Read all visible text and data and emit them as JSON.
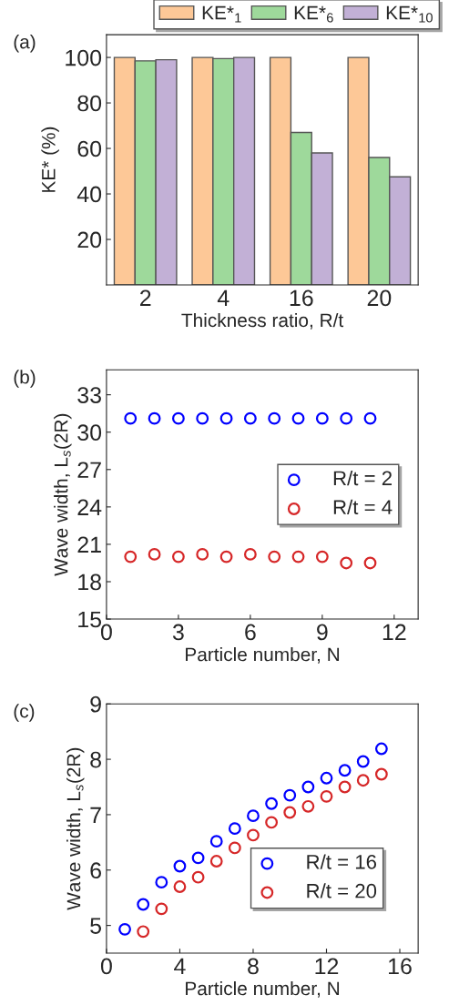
{
  "chart_data": [
    {
      "type": "bar",
      "annotations": [
        "(a)"
      ],
      "xlabel": "Thickness ratio, R/t",
      "ylabel": "KE* (%)",
      "categories": [
        "2",
        "4",
        "16",
        "20"
      ],
      "ylim": [
        0,
        110
      ],
      "yticks": [
        20,
        40,
        60,
        80,
        100
      ],
      "legend": "top",
      "series": [
        {
          "name": "KE*$_{1}$",
          "color": "#fdc897",
          "values": [
            100,
            100,
            100,
            100
          ]
        },
        {
          "name": "KE*$_{6}$",
          "color": "#9ed99b",
          "values": [
            98.5,
            99.5,
            67,
            56
          ]
        },
        {
          "name": "KE*$_{10}$",
          "color": "#c2b0d6",
          "values": [
            99,
            100,
            58,
            47.5
          ]
        }
      ]
    },
    {
      "type": "scatter",
      "annotations": [
        "(b)"
      ],
      "xlabel": "Particle number, N",
      "ylabel": "Wave width, L$_{s}$(2R)",
      "xlim": [
        0,
        13
      ],
      "xticks": [
        0,
        3,
        6,
        9,
        12
      ],
      "ylim": [
        15,
        35
      ],
      "yticks": [
        15,
        18,
        21,
        24,
        27,
        30,
        33
      ],
      "legend": "center right",
      "marker": "circle",
      "series": [
        {
          "name": "R/t = 2",
          "color": "#0000ff",
          "x": [
            1,
            2,
            3,
            4,
            5,
            6,
            7,
            8,
            9,
            10,
            11
          ],
          "values": [
            31.1,
            31.1,
            31.1,
            31.1,
            31.1,
            31.1,
            31.1,
            31.1,
            31.1,
            31.1,
            31.1
          ]
        },
        {
          "name": "R/t = 4",
          "color": "#d62728",
          "x": [
            1,
            2,
            3,
            4,
            5,
            6,
            7,
            8,
            9,
            10,
            11
          ],
          "values": [
            20.0,
            20.2,
            20.0,
            20.2,
            20.0,
            20.2,
            20.0,
            20.0,
            20.0,
            19.5,
            19.5
          ]
        }
      ]
    },
    {
      "type": "scatter",
      "annotations": [
        "(c)"
      ],
      "xlabel": "Particle number, N",
      "ylabel": "Wave width, L$_{s}$(2R)",
      "xlim": [
        0,
        17
      ],
      "xticks": [
        0,
        4,
        8,
        12,
        16
      ],
      "ylim": [
        4.5,
        9
      ],
      "yticks": [
        5,
        6,
        7,
        8,
        9
      ],
      "legend": "lower right",
      "marker": "circle",
      "series": [
        {
          "name": "R/t = 16",
          "color": "#0000ff",
          "x": [
            1,
            2,
            3,
            4,
            5,
            6,
            7,
            8,
            9,
            10,
            11,
            12,
            13,
            14,
            15
          ],
          "values": [
            4.93,
            5.38,
            5.78,
            6.07,
            6.22,
            6.52,
            6.75,
            6.98,
            7.2,
            7.35,
            7.5,
            7.66,
            7.8,
            7.96,
            8.19
          ]
        },
        {
          "name": "R/t = 20",
          "color": "#d62728",
          "x": [
            2,
            3,
            4,
            5,
            6,
            7,
            8,
            9,
            10,
            11,
            12,
            13,
            14,
            15
          ],
          "values": [
            4.89,
            5.3,
            5.7,
            5.87,
            6.16,
            6.4,
            6.63,
            6.86,
            7.04,
            7.15,
            7.33,
            7.5,
            7.62,
            7.73
          ]
        }
      ]
    }
  ]
}
